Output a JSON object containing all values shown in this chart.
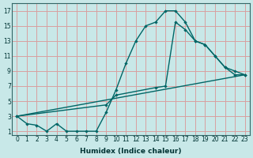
{
  "bg_color": "#c8e8e8",
  "grid_color": "#d8a0a0",
  "line_color": "#006666",
  "xlabel": "Humidex (Indice chaleur)",
  "xlim": [
    -0.5,
    23.5
  ],
  "ylim": [
    0.5,
    18
  ],
  "xticks": [
    0,
    1,
    2,
    3,
    4,
    5,
    6,
    7,
    8,
    9,
    10,
    11,
    12,
    13,
    14,
    15,
    16,
    17,
    18,
    19,
    20,
    21,
    22,
    23
  ],
  "yticks": [
    1,
    3,
    5,
    7,
    9,
    11,
    13,
    15,
    17
  ],
  "line1_x": [
    0,
    1,
    2,
    3,
    4,
    5,
    6,
    7,
    8,
    9,
    10,
    11,
    12,
    13,
    14,
    15,
    16,
    17,
    18,
    19,
    20,
    21,
    22,
    23
  ],
  "line1_y": [
    3.0,
    2.0,
    1.8,
    1.0,
    2.0,
    1.0,
    1.0,
    1.0,
    1.0,
    3.5,
    6.5,
    10.0,
    13.0,
    15.0,
    15.5,
    17.0,
    17.0,
    15.5,
    13.0,
    12.5,
    11.0,
    9.5,
    8.5,
    8.5
  ],
  "line2_x": [
    0,
    9,
    10,
    14,
    15,
    16,
    17,
    18,
    19,
    20,
    21,
    22,
    23
  ],
  "line2_y": [
    3.0,
    4.5,
    5.8,
    6.8,
    7.0,
    15.5,
    14.5,
    13.0,
    12.5,
    11.0,
    9.5,
    9.0,
    8.5
  ],
  "line3_x": [
    0,
    23
  ],
  "line3_y": [
    3.0,
    8.5
  ]
}
